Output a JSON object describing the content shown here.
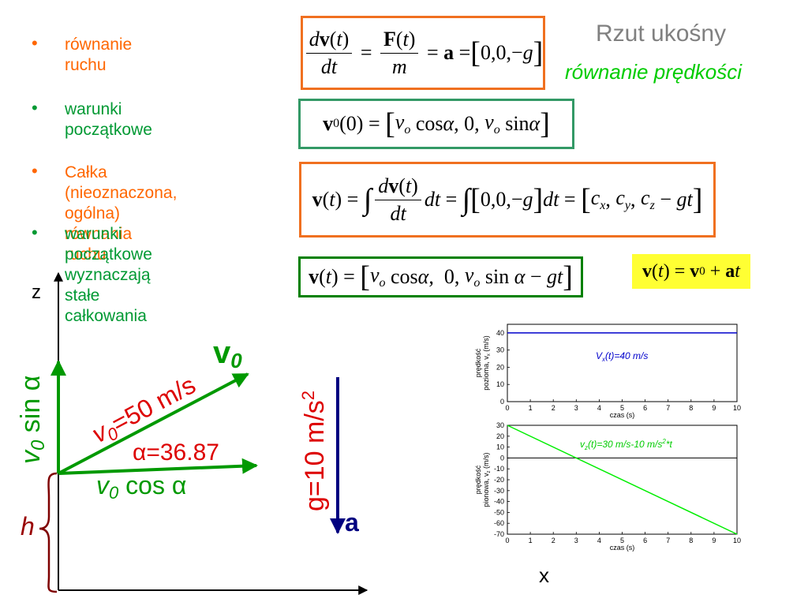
{
  "header": {
    "title": "Rzut ukośny",
    "subtitle": "równanie prędkości"
  },
  "bullets": [
    {
      "text": "równanie ruchu",
      "color": "#ff6600"
    },
    {
      "text": "warunki początkowe",
      "color": "#009933"
    },
    {
      "text": "Całka (nieoznaczona,\nogólna) równania ruchu",
      "color": "#ff6600"
    },
    {
      "text": "warunki początkowe\nwyznaczają stałe\ncałkowania",
      "color": "#009933"
    }
  ],
  "diagram": {
    "z_label": "z",
    "x_label": "x",
    "v0_label": "v",
    "v0_sub": "0",
    "v0_value": "=50 m/s",
    "alpha_label": "α=36.87",
    "vsin_label": "v",
    "vsin_sub": "0",
    "vsin_text": " sin α",
    "vcos_label": "v",
    "vcos_sub": "0",
    "vcos_text": " cos  α",
    "h_label": "h",
    "g_label": "g=10 m/s",
    "g_sup": "2",
    "a_label": "a",
    "vec_v": "v",
    "vec_sub": "0"
  },
  "chart_data": [
    {
      "type": "line",
      "xlabel": "czas  (s)",
      "ylabel": "prędkość pozioma, v",
      "ylabel_sub": "x",
      "ylabel_unit": "(m/s)",
      "xlim": [
        0,
        10
      ],
      "ylim": [
        0,
        45
      ],
      "xticks": [
        0,
        1,
        2,
        3,
        4,
        5,
        6,
        7,
        8,
        9,
        10
      ],
      "yticks": [
        0,
        10,
        20,
        30,
        40
      ],
      "series": [
        {
          "x": [
            0,
            10
          ],
          "y": [
            40,
            40
          ],
          "color": "#0000cc"
        }
      ],
      "annotation": {
        "pre": "V",
        "sub": "x",
        "post": "(t)",
        "rest": "=40 m/s",
        "color": "#0000cc"
      }
    },
    {
      "type": "line",
      "xlabel": "czas  (s)",
      "ylabel": "prędkość pionowa, v",
      "ylabel_sub": "z",
      "ylabel_unit": "(m/s)",
      "xlim": [
        0,
        10
      ],
      "ylim": [
        -70,
        30
      ],
      "xticks": [
        0,
        1,
        2,
        3,
        4,
        5,
        6,
        7,
        8,
        9,
        10
      ],
      "yticks": [
        30,
        20,
        10,
        0,
        -10,
        -20,
        -30,
        -40,
        -50,
        -60,
        -70
      ],
      "series": [
        {
          "x": [
            0,
            10
          ],
          "y": [
            30,
            -70
          ],
          "color": "#00ee00"
        }
      ],
      "zero_line": true,
      "annotation": {
        "pre": "v",
        "sub": "z",
        "post": "(t)=30 m/s-10 m/s",
        "sup": "2",
        "rest": "*t",
        "color": "#00cc00"
      }
    }
  ]
}
